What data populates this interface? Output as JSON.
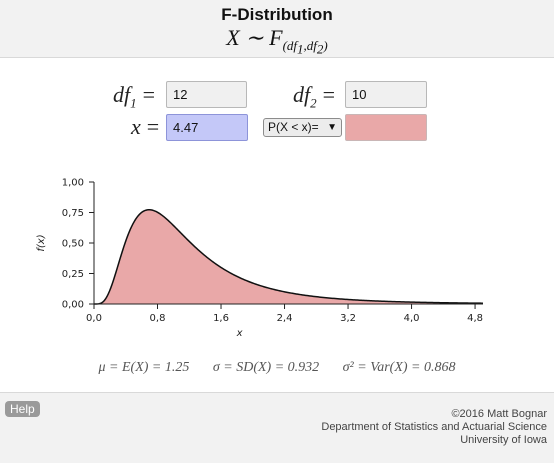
{
  "header": {
    "title": "F-Distribution",
    "formula_lhs": "X ∼ F",
    "formula_sub": "(df",
    "formula_sub_mid": ",df",
    "formula_sub_end": ")",
    "sub1": "1",
    "sub2": "2"
  },
  "params": {
    "df1_label": "df",
    "df1_index": "1",
    "df1_value": "12",
    "df2_label": "df",
    "df2_index": "2",
    "df2_value": "10",
    "x_label": "x",
    "x_value": "4.47",
    "equals": "="
  },
  "prob_select": {
    "selected": "P(X < x)=",
    "arrow": "▼"
  },
  "result_color": "#e9a8a8",
  "chart_data": {
    "type": "area",
    "distribution": "F",
    "df1": 12,
    "df2": 10,
    "x_ticks": [
      "0,0",
      "0,8",
      "1,6",
      "2,4",
      "3,2",
      "4,0",
      "4,8"
    ],
    "x_tick_values": [
      0,
      0.8,
      1.6,
      2.4,
      3.2,
      4.0,
      4.8
    ],
    "y_ticks": [
      "0,00",
      "0,25",
      "0,50",
      "0,75",
      "1,00"
    ],
    "y_tick_values": [
      0,
      0.25,
      0.5,
      0.75,
      1.0
    ],
    "xlim": [
      0,
      4.9
    ],
    "ylim": [
      0,
      1.0
    ],
    "xlabel": "x",
    "ylabel": "f(x)",
    "shaded_upto": 4.47,
    "fill_color": "#e9a8a8"
  },
  "stats": {
    "mean": "μ = E(X) = 1.25",
    "sd": "σ = SD(X) = 0.932",
    "var": "σ² = Var(X) = 0.868"
  },
  "footer": {
    "help_label": "Help",
    "credit1": "©2016 Matt Bognar",
    "credit2": "Department of Statistics and Actuarial Science",
    "credit3": "University of Iowa"
  }
}
